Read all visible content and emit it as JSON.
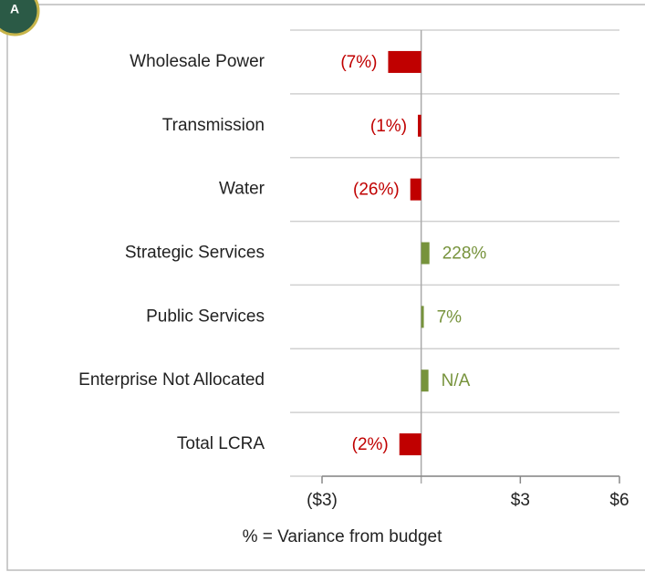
{
  "badge": "A",
  "chart_data": {
    "type": "hbar",
    "categories": [
      "Wholesale Power",
      "Transmission",
      "Water",
      "Strategic Services",
      "Public Services",
      "Enterprise Not Allocated",
      "Total LCRA"
    ],
    "values": [
      -1.0,
      -0.1,
      -0.33,
      0.25,
      0.08,
      0.22,
      -0.66
    ],
    "colors": [
      "#c00000",
      "#c00000",
      "#c00000",
      "#77933c",
      "#77933c",
      "#77933c",
      "#c00000"
    ],
    "variance_labels": [
      "(7%)",
      "(1%)",
      "(26%)",
      "228%",
      "7%",
      "N/A",
      "(2%)"
    ],
    "xlim": [
      -3,
      6
    ],
    "xticks": [
      {
        "value": -3,
        "label": "($3)"
      },
      {
        "value": 3,
        "label": "$3"
      },
      {
        "value": 6,
        "label": "$6"
      }
    ],
    "xlabel": "% = Variance from budget"
  }
}
